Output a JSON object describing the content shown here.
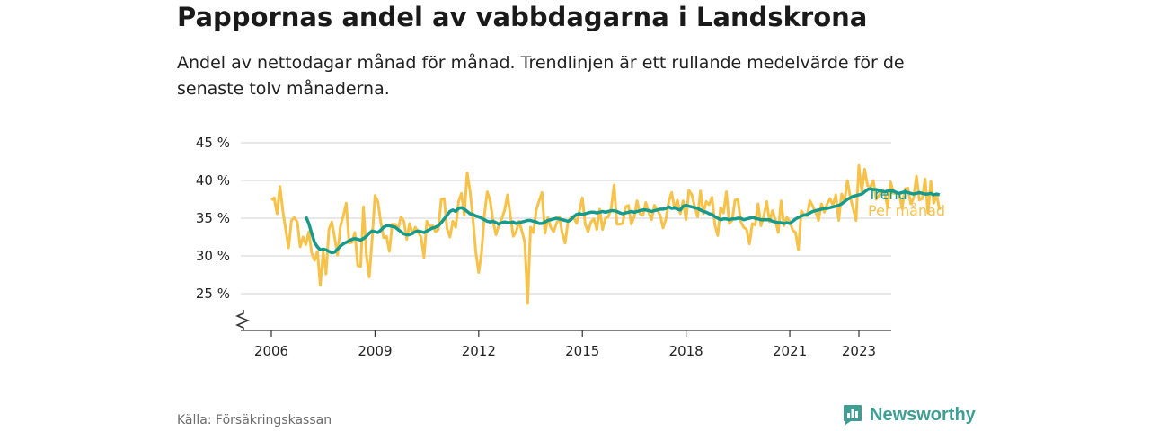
{
  "title": "Pappornas andel av vabbdagarna i Landskrona",
  "subtitle": "Andel av nettodagar månad för månad. Trendlinjen är ett rullande medelvärde för de senaste tolv månaderna.",
  "source": "Källa: Försäkringskassan",
  "brand": {
    "name": "Newsworthy",
    "icon": "newsworthy-logo-icon"
  },
  "colors": {
    "trend": "#159a8c",
    "monthly": "#f7c24a",
    "grid": "#d9d9d9",
    "axis": "#333333",
    "brand": "#3f9e94"
  },
  "chart_data": {
    "type": "line",
    "title": "Pappornas andel av vabbdagarna i Landskrona",
    "subtitle": "Andel av nettodagar månad för månad. Trendlinjen är ett rullande medelvärde för de senaste tolv månaderna.",
    "xlabel": "",
    "ylabel": "",
    "ylim": [
      20,
      45
    ],
    "y_ticks": [
      25,
      30,
      35,
      40,
      45
    ],
    "y_tick_labels": [
      "25 %",
      "30 %",
      "35 %",
      "40 %",
      "45 %"
    ],
    "y_axis_break": true,
    "x_ticks": [
      2006,
      2009,
      2012,
      2015,
      2018,
      2021,
      2023
    ],
    "grid": true,
    "legend": "inline labels at line ends (right)",
    "series": [
      {
        "name": "Trend",
        "start": "2007-01",
        "frequency": "monthly",
        "values": [
          35.2,
          34.3,
          33.0,
          31.8,
          31.2,
          30.8,
          30.9,
          30.8,
          30.6,
          30.4,
          30.5,
          30.9,
          31.3,
          31.6,
          31.8,
          32.0,
          32.2,
          32.3,
          32.2,
          32.1,
          32.3,
          32.6,
          33.0,
          33.3,
          33.2,
          33.1,
          33.4,
          33.8,
          34.0,
          34.0,
          33.9,
          33.8,
          33.5,
          33.2,
          32.9,
          32.8,
          32.8,
          33.0,
          33.2,
          33.3,
          33.2,
          33.1,
          33.3,
          33.5,
          33.7,
          33.8,
          34.0,
          34.4,
          34.9,
          35.4,
          35.9,
          36.1,
          35.9,
          36.3,
          36.4,
          36.2,
          35.9,
          35.6,
          35.5,
          35.3,
          35.2,
          35.0,
          34.8,
          34.6,
          34.5,
          34.6,
          34.4,
          34.2,
          34.4,
          34.5,
          34.4,
          34.4,
          34.5,
          34.3,
          34.4,
          34.5,
          34.6,
          34.7,
          34.7,
          34.6,
          34.5,
          34.3,
          34.3,
          34.5,
          34.7,
          34.8,
          34.9,
          35.0,
          34.9,
          34.8,
          34.7,
          34.6,
          34.8,
          35.2,
          35.5,
          35.6,
          35.5,
          35.6,
          35.7,
          35.8,
          35.8,
          35.7,
          35.8,
          35.9,
          35.8,
          35.9,
          36.0,
          36.0,
          35.9,
          35.7,
          35.6,
          35.7,
          35.8,
          35.9,
          35.8,
          35.9,
          36.0,
          36.1,
          36.1,
          36.0,
          35.9,
          36.0,
          36.1,
          36.2,
          36.2,
          36.3,
          36.5,
          36.3,
          36.4,
          36.2,
          36.1,
          36.6,
          36.7,
          36.6,
          36.5,
          36.4,
          36.3,
          36.1,
          35.9,
          35.8,
          35.6,
          35.5,
          35.2,
          35.0,
          34.8,
          34.9,
          34.9,
          34.8,
          34.9,
          34.9,
          35.0,
          35.0,
          34.8,
          34.9,
          35.0,
          35.1,
          35.0,
          34.9,
          34.8,
          34.8,
          34.8,
          34.8,
          34.6,
          34.5,
          34.4,
          34.4,
          34.3,
          34.4,
          34.3,
          34.6,
          34.9,
          35.1,
          35.3,
          35.4,
          35.5,
          35.7,
          35.9,
          36.0,
          36.1,
          36.2,
          36.3,
          36.3,
          36.4,
          36.5,
          36.6,
          36.7,
          36.9,
          37.2,
          37.5,
          37.7,
          37.9,
          38.0,
          38.1,
          38.2,
          38.5,
          38.8,
          38.9,
          38.8,
          38.8,
          38.7,
          38.6,
          38.5,
          38.6,
          38.7,
          38.6,
          38.4,
          38.3,
          38.4,
          38.5,
          38.4,
          38.3,
          38.2,
          38.3,
          38.4,
          38.3,
          38.2,
          38.2,
          38.3,
          38.1,
          38.2,
          38.1
        ]
      },
      {
        "name": "Per månad",
        "start": "2006-01",
        "frequency": "monthly",
        "values": [
          37.4,
          37.7,
          35.6,
          39.2,
          36.0,
          33.5,
          31.1,
          34.7,
          35.1,
          34.5,
          31.2,
          32.5,
          31.5,
          33.2,
          30.4,
          29.4,
          30.6,
          26.1,
          30.5,
          27.6,
          33.5,
          34.5,
          32.4,
          30.1,
          33.9,
          35.3,
          37.0,
          31.7,
          31.8,
          33.1,
          28.7,
          28.6,
          36.5,
          30.1,
          27.2,
          32.2,
          38.0,
          37.2,
          34.5,
          32.4,
          32.6,
          30.6,
          34.2,
          34.2,
          33.5,
          35.2,
          34.6,
          32.2,
          34.3,
          32.9,
          33.8,
          33.1,
          32.5,
          29.8,
          34.6,
          33.9,
          34.0,
          33.2,
          33.5,
          37.5,
          37.6,
          33.6,
          32.5,
          34.6,
          33.8,
          37.2,
          38.3,
          35.4,
          41.0,
          38.6,
          34.9,
          30.5,
          27.8,
          30.4,
          35.5,
          38.5,
          37.3,
          34.6,
          32.8,
          34.1,
          34.9,
          36.1,
          38.1,
          35.3,
          32.6,
          33.2,
          34.6,
          33.3,
          31.8,
          23.7,
          33.8,
          33.1,
          36.1,
          37.3,
          38.4,
          33.0,
          35.1,
          33.8,
          33.2,
          34.3,
          35.2,
          33.0,
          31.7,
          34.5,
          35.1,
          35.1,
          34.3,
          36.0,
          37.7,
          34.2,
          33.2,
          34.5,
          34.9,
          33.5,
          36.2,
          33.5,
          35.0,
          35.2,
          36.3,
          39.4,
          34.2,
          34.2,
          34.3,
          36.5,
          36.7,
          34.2,
          35.2,
          37.3,
          35.6,
          35.4,
          37.1,
          35.8,
          34.8,
          36.7,
          36.1,
          35.4,
          33.7,
          34.9,
          37.2,
          38.4,
          36.3,
          37.4,
          35.6,
          37.3,
          34.8,
          38.7,
          38.1,
          36.5,
          35.2,
          38.6,
          35.6,
          37.2,
          36.8,
          37.8,
          34.1,
          32.7,
          36.4,
          35.7,
          38.5,
          34.3,
          34.7,
          37.4,
          37.5,
          34.5,
          33.8,
          33.5,
          31.6,
          34.3,
          34.1,
          36.9,
          34.0,
          35.3,
          37.2,
          34.5,
          36.0,
          34.8,
          33.1,
          37.3,
          34.0,
          35.1,
          34.6,
          33.4,
          33.1,
          30.8,
          36.0,
          35.4,
          35.3,
          37.3,
          36.6,
          35.8,
          34.7,
          36.9,
          35.8,
          36.9,
          37.6,
          36.7,
          38.1,
          34.7,
          38.2,
          37.3,
          40.0,
          37.8,
          36.3,
          34.7,
          42.0,
          38.5,
          41.5,
          39.3,
          39.1,
          40.0,
          37.5,
          38.0,
          38.7,
          38.3,
          36.5,
          39.8,
          38.3,
          38.3,
          38.2,
          36.3,
          38.9,
          39.0,
          36.9,
          37.7,
          40.6,
          37.4,
          37.6,
          40.2,
          35.7,
          39.9,
          37.0,
          38.1,
          36.1
        ]
      }
    ],
    "series_labels": {
      "trend": "Trend",
      "monthly": "Per månad"
    }
  }
}
